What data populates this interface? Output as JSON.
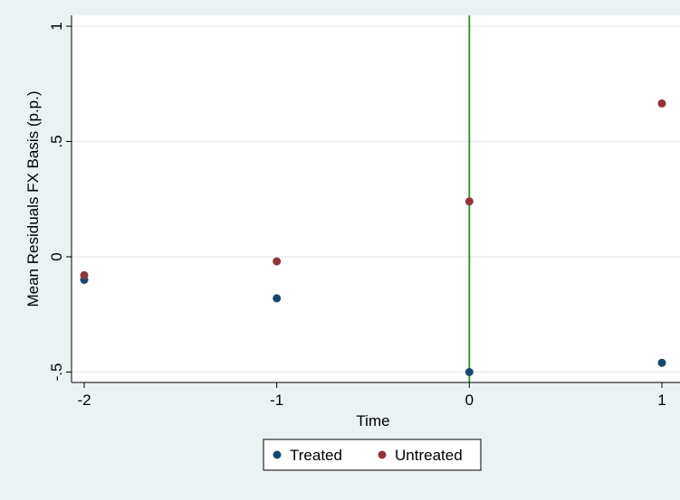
{
  "chart_data": {
    "type": "scatter",
    "xlabel": "Time",
    "ylabel": "Mean Residuals FX Basis (p.p.)",
    "xlim": [
      -2,
      1
    ],
    "ylim": [
      -0.55,
      1.02
    ],
    "x_ticks": [
      -2,
      -1,
      0,
      1
    ],
    "y_ticks": [
      -0.5,
      0,
      0.5,
      1
    ],
    "x_tick_labels": [
      "-2",
      "-1",
      "0",
      "1"
    ],
    "y_tick_labels": [
      "-.5",
      "0",
      ".5",
      "1"
    ],
    "grid": true,
    "vertical_line": {
      "x": 0,
      "color": "#2e8b2e"
    },
    "legend_position": "bottom",
    "series": [
      {
        "name": "Treated",
        "color": "#1a476f",
        "points": [
          {
            "x": -2,
            "y": -0.1
          },
          {
            "x": -1,
            "y": -0.18
          },
          {
            "x": 0,
            "y": -0.5
          },
          {
            "x": 1,
            "y": -0.46
          }
        ]
      },
      {
        "name": "Untreated",
        "color": "#90353b",
        "points": [
          {
            "x": -2,
            "y": -0.08
          },
          {
            "x": -1,
            "y": -0.02
          },
          {
            "x": 0,
            "y": 0.24
          },
          {
            "x": 1,
            "y": 0.665
          }
        ]
      }
    ]
  }
}
